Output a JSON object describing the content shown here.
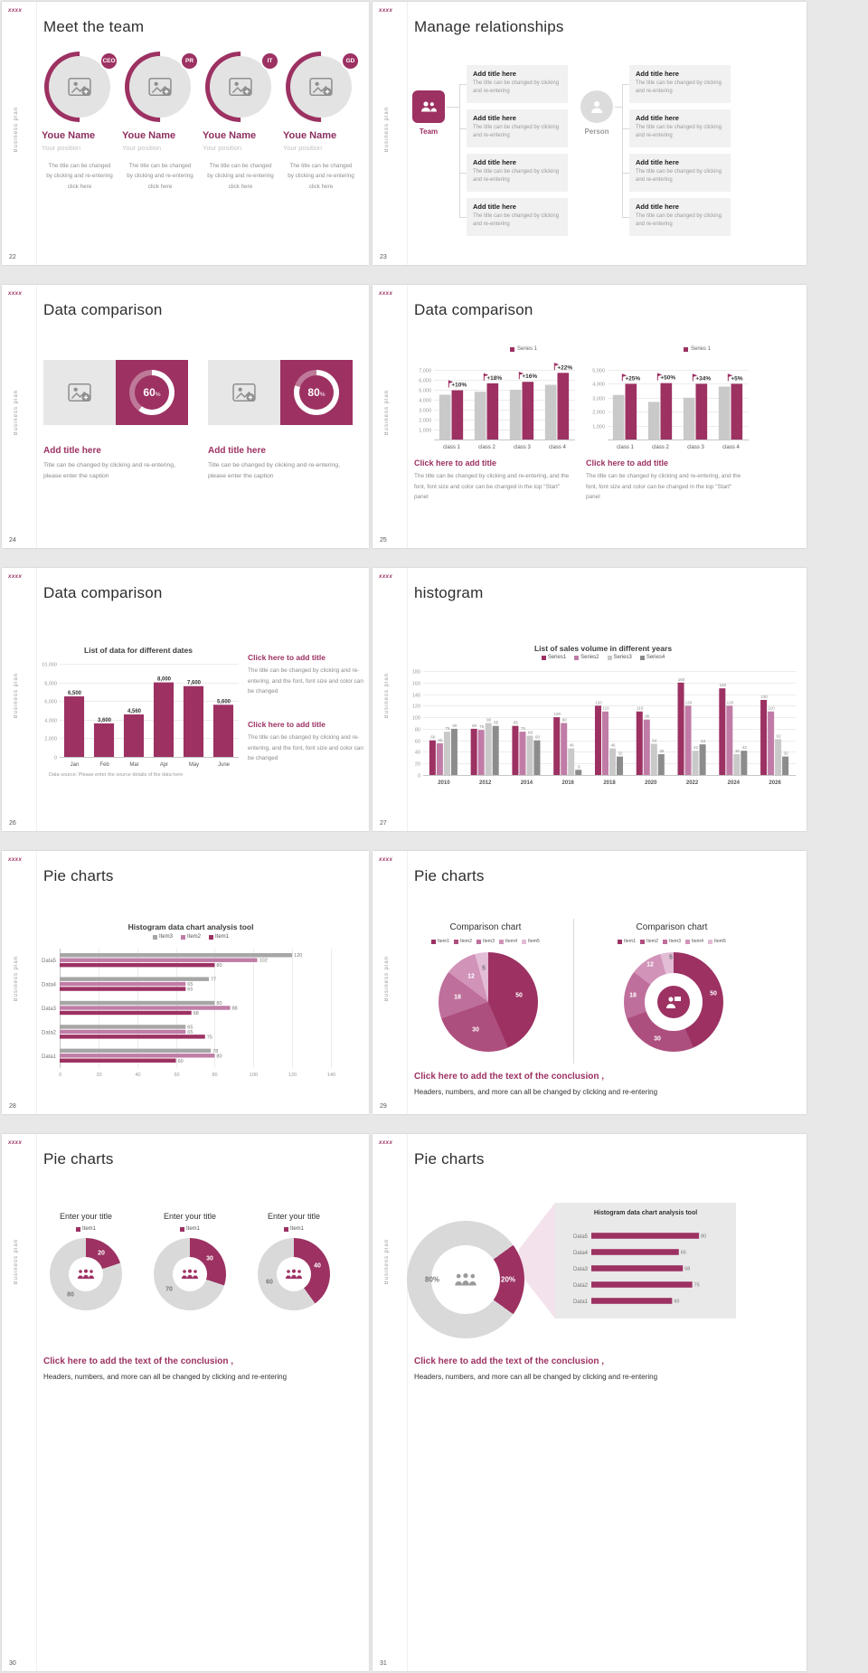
{
  "common": {
    "logo": "xxxx",
    "sidebar_label": "Business plan"
  },
  "theme": {
    "accent": "#9c3162",
    "accent_light": "#c07ca6",
    "bar_gray": "#c9c9c9",
    "dark_gray": "#8c8c8c",
    "donut_gray": "#d9d9d9",
    "pie_shades": [
      "#9c3162",
      "#ad4f7e",
      "#bf6f9b",
      "#d193b8",
      "#e3bcd6"
    ]
  },
  "slides": [
    {
      "num": "22",
      "title": "Meet the team",
      "members": [
        {
          "badge": "CEO",
          "name": "Youe Name",
          "position": "Your position",
          "desc": "The title can be changed by clicking and re-entering click here"
        },
        {
          "badge": "PR",
          "name": "Youe Name",
          "position": "Your position",
          "desc": "The title can be changed by clicking and re-entering click here"
        },
        {
          "badge": "IT",
          "name": "Youe Name",
          "position": "Your position",
          "desc": "The title can be changed by clicking and re-entering click here"
        },
        {
          "badge": "GD",
          "name": "Youe Name",
          "position": "Your position",
          "desc": "The title can be changed by clicking and re-entering click here"
        }
      ]
    },
    {
      "num": "23",
      "title": "Manage relationships",
      "team_label": "Team",
      "person_label": "Person",
      "box_title": "Add title here",
      "box_desc": "The title can be changed by clicking and re-entering"
    },
    {
      "num": "24",
      "title": "Data comparison",
      "cards": [
        {
          "percent": 60,
          "value": "60",
          "unit": "%",
          "title": "Add title here",
          "desc": "Title can be changed by clicking and re-entering, please enter the caption"
        },
        {
          "percent": 80,
          "value": "80",
          "unit": "%",
          "title": "Add title here",
          "desc": "Title can be changed by clicking and re-entering, please enter the caption"
        }
      ]
    },
    {
      "num": "25",
      "title": "Data comparison",
      "legend": "Series 1",
      "charts": [
        {
          "type": "bar",
          "mL": 24,
          "mT": 16,
          "skipZero": true,
          "categories": [
            "class 1",
            "class 2",
            "class 3",
            "class 4"
          ],
          "ymax": 7000,
          "ystep": 1000,
          "series": [
            {
              "name": "previous",
              "color": "#c9c9c9",
              "values": [
                4500,
                4800,
                5000,
                5500
              ]
            },
            {
              "name": "Series 1",
              "color": "#9c3162",
              "values": [
                4950,
                5650,
                5800,
                6700
              ],
              "ann": [
                "+10%",
                "+18%",
                "+16%",
                "+22%"
              ]
            }
          ]
        },
        {
          "type": "bar",
          "mL": 24,
          "mT": 16,
          "skipZero": true,
          "categories": [
            "class 1",
            "class 2",
            "class 3",
            "class 4"
          ],
          "ymax": 5000,
          "ystep": 1000,
          "series": [
            {
              "name": "previous",
              "color": "#c9c9c9",
              "values": [
                3200,
                2700,
                3000,
                3800
              ]
            },
            {
              "name": "Series 1",
              "color": "#9c3162",
              "values": [
                4000,
                4050,
                4000,
                4000
              ],
              "ann": [
                "+25%",
                "+50%",
                "+34%",
                "+5%"
              ]
            }
          ]
        }
      ],
      "blocks": [
        {
          "title": "Click here to add title",
          "desc": "The title can be changed by clicking and re-entering, and the font, font size and color can be changed in the top \"Start\" panel"
        },
        {
          "title": "Click here to add title",
          "desc": "The title can be changed by clicking and re-entering, and the font, font size and color can be changed in the top \"Start\" panel"
        }
      ]
    },
    {
      "num": "26",
      "title": "Data comparison",
      "chart": {
        "type": "bar",
        "mL": 28,
        "title": "List of data for different dates",
        "categories": [
          "Jan",
          "Feb",
          "Mar",
          "Apr",
          "May",
          "June"
        ],
        "ymax": 10000,
        "ystep": 2000,
        "value_labels": true,
        "vlFmt": "comma",
        "vlBold": true,
        "vlColor": "#333",
        "vlSize": 6,
        "series": [
          {
            "name": "data",
            "color": "#9c3162",
            "values": [
              6500,
              3600,
              4560,
              8000,
              7600,
              5600
            ]
          }
        ]
      },
      "source": "Data source: Please enter the source details of the data here",
      "blocks": [
        {
          "title": "Click here to add title",
          "desc": "The title can be changed by clicking and re-entering, and the font, font size and color can be changed"
        },
        {
          "title": "Click here to add title",
          "desc": "The title can be changed by clicking and re-entering, and the font, font size and color can be changed"
        }
      ]
    },
    {
      "num": "27",
      "title": "histogram",
      "chart": {
        "type": "bar",
        "mL": 18,
        "title": "List of sales volume in different years",
        "catBold": true,
        "legend": [
          {
            "label": "Series1",
            "color": "#9c3162"
          },
          {
            "label": "Series2",
            "color": "#c07ca6"
          },
          {
            "label": "Series3",
            "color": "#c9c9c9"
          },
          {
            "label": "Series4",
            "color": "#8c8c8c"
          }
        ],
        "categories": [
          "2010",
          "2012",
          "2014",
          "2016",
          "2018",
          "2020",
          "2022",
          "2024",
          "2026"
        ],
        "ymax": 180,
        "ystep": 20,
        "value_labels": true,
        "vlSize": 4.5,
        "vlColor": "#888",
        "series": [
          {
            "name": "Series1",
            "color": "#9c3162",
            "values": [
              60,
              80,
              85,
              100,
              120,
              110,
              160,
              150,
              130
            ]
          },
          {
            "name": "Series2",
            "color": "#c07ca6",
            "values": [
              55,
              78,
              75,
              90,
              110,
              96,
              120,
              120,
              110
            ]
          },
          {
            "name": "Series3",
            "color": "#c9c9c9",
            "values": [
              75,
              90,
              68,
              46,
              46,
              54,
              42,
              36,
              62
            ]
          },
          {
            "name": "Series4",
            "color": "#8c8c8c",
            "values": [
              80,
              85,
              60,
              9,
              32,
              36,
              53,
              42,
              32
            ]
          }
        ]
      }
    },
    {
      "num": "28",
      "title": "Pie charts",
      "chart": {
        "type": "hbar",
        "mL": 26,
        "title": "Histogram data chart analysis tool",
        "legend": [
          {
            "label": "Item3",
            "color": "#a6a6a6"
          },
          {
            "label": "Item2",
            "color": "#c07ca6"
          },
          {
            "label": "Item1",
            "color": "#9c3162"
          }
        ],
        "categories": [
          "Data5",
          "Data4",
          "Data3",
          "Data2",
          "Data1"
        ],
        "xmax": 140,
        "xstep": 20,
        "value_labels": true,
        "series": [
          {
            "name": "Item3",
            "color": "#a6a6a6",
            "values": [
              120,
              77,
              80,
              65,
              78
            ]
          },
          {
            "name": "Item2",
            "color": "#c07ca6",
            "values": [
              102,
              65,
              88,
              65,
              80
            ]
          },
          {
            "name": "Item1",
            "color": "#9c3162",
            "values": [
              80,
              65,
              68,
              75,
              60
            ]
          }
        ]
      }
    },
    {
      "num": "29",
      "title": "Pie charts",
      "pies": [
        {
          "title": "Comparison chart",
          "type": "pie",
          "values": [
            50,
            30,
            18,
            12,
            5
          ],
          "legend": [
            "Item1",
            "Item2",
            "Item3",
            "Item4",
            "Item5"
          ]
        },
        {
          "title": "Comparison chart",
          "type": "donut",
          "values": [
            50,
            30,
            18,
            12,
            5
          ],
          "legend": [
            "Item1",
            "Item2",
            "Item3",
            "Item4",
            "Item5"
          ]
        }
      ],
      "conclusion": {
        "title": "Click here to add the text of the conclusion ,",
        "body": "Headers, numbers, and more can all be changed by clicking and re-entering"
      }
    },
    {
      "num": "30",
      "title": "Pie charts",
      "donuts": [
        {
          "title": "Enter your title",
          "legend": "Item1",
          "value": 20,
          "rest": 80
        },
        {
          "title": "Enter your title",
          "legend": "Item1",
          "value": 30,
          "rest": 70
        },
        {
          "title": "Enter your title",
          "legend": "Item1",
          "value": 40,
          "rest": 60
        }
      ],
      "conclusion": {
        "title": "Click here to add the text of the conclusion ,",
        "body": "Headers, numbers, and more can all be changed by clicking and re-entering"
      }
    },
    {
      "num": "31",
      "title": "Pie charts",
      "donut": {
        "value": 20,
        "rest": 80,
        "value_label": "20%",
        "rest_label": "80%"
      },
      "panel": {
        "title": "Histogram data chart analysis tool",
        "chart": {
          "type": "hbar",
          "simple": true,
          "mL": 30,
          "xmax": 90,
          "value_labels": true,
          "categories": [
            "Data5",
            "Data4",
            "Data3",
            "Data2",
            "Data1"
          ],
          "series": [
            {
              "name": "data",
              "color": "#9c3162",
              "values": [
                80,
                65,
                68,
                75,
                60
              ]
            }
          ]
        }
      },
      "conclusion": {
        "title": "Click here to add the text of the conclusion ,",
        "body": "Headers, numbers, and more can all be changed by clicking and re-entering"
      }
    }
  ]
}
